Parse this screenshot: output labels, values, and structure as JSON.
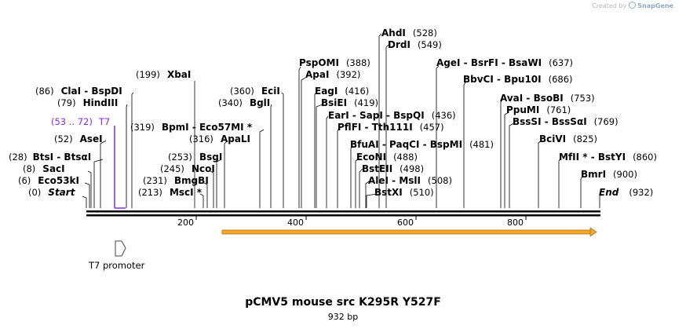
{
  "credit": {
    "prefix": "Created by",
    "brand": "SnapGene"
  },
  "title": "pCMV5 mouse src K295R Y527F",
  "length_label": "932 bp",
  "axis": {
    "ticks": [
      "200",
      "400",
      "600",
      "800"
    ]
  },
  "features": {
    "t7_promoter": {
      "label": "T7 promoter"
    },
    "t7_primer": {
      "label": "T7",
      "range": "(53 .. 72)",
      "color": "#8a2be2"
    },
    "orf_color": "#f5a623"
  },
  "sites": [
    {
      "pos": "(0)",
      "name": "Start"
    },
    {
      "pos": "(6)",
      "name": "Eco53kI"
    },
    {
      "pos": "(8)",
      "name": "SacI"
    },
    {
      "pos": "(28)",
      "name": "BtsI - BtsαI"
    },
    {
      "pos": "(52)",
      "name": "AseI"
    },
    {
      "pos": "(79)",
      "name": "HindIII"
    },
    {
      "pos": "(86)",
      "name": "ClaI - BspDI"
    },
    {
      "pos": "(199)",
      "name": "XbaI"
    },
    {
      "pos": "(213)",
      "name": "MscI *"
    },
    {
      "pos": "(231)",
      "name": "BmgBI"
    },
    {
      "pos": "(245)",
      "name": "NcoI"
    },
    {
      "pos": "(253)",
      "name": "BsgI"
    },
    {
      "pos": "(316)",
      "name": "ApaLI"
    },
    {
      "pos": "(319)",
      "name": "BpmI - Eco57MI *"
    },
    {
      "pos": "(340)",
      "name": "BglI"
    },
    {
      "pos": "(360)",
      "name": "EciI"
    },
    {
      "pos": "(388)",
      "name": "PspOMI"
    },
    {
      "pos": "(392)",
      "name": "ApaI"
    },
    {
      "pos": "(416)",
      "name": "EagI"
    },
    {
      "pos": "(419)",
      "name": "BsiEI"
    },
    {
      "pos": "(436)",
      "name": "EarI - SapI - BspQI"
    },
    {
      "pos": "(457)",
      "name": "PflFI - Tth111I"
    },
    {
      "pos": "(481)",
      "name": "BfuAI - PaqCI - BspMI"
    },
    {
      "pos": "(488)",
      "name": "EcoNI"
    },
    {
      "pos": "(498)",
      "name": "BstEII"
    },
    {
      "pos": "(508)",
      "name": "AleI - MslI"
    },
    {
      "pos": "(510)",
      "name": "BstXI"
    },
    {
      "pos": "(528)",
      "name": "AhdI"
    },
    {
      "pos": "(549)",
      "name": "DrdI"
    },
    {
      "pos": "(637)",
      "name": "AgeI - BsrFI - BsaWI"
    },
    {
      "pos": "(686)",
      "name": "BbvCI - Bpu10I"
    },
    {
      "pos": "(753)",
      "name": "AvaI - BsoBI"
    },
    {
      "pos": "(761)",
      "name": "PpuMI"
    },
    {
      "pos": "(769)",
      "name": "BssSI - BssSαI"
    },
    {
      "pos": "(825)",
      "name": "BciVI"
    },
    {
      "pos": "(860)",
      "name": "MfII * - BstYI"
    },
    {
      "pos": "(900)",
      "name": "BmrI"
    },
    {
      "pos": "(932)",
      "name": "End"
    }
  ]
}
